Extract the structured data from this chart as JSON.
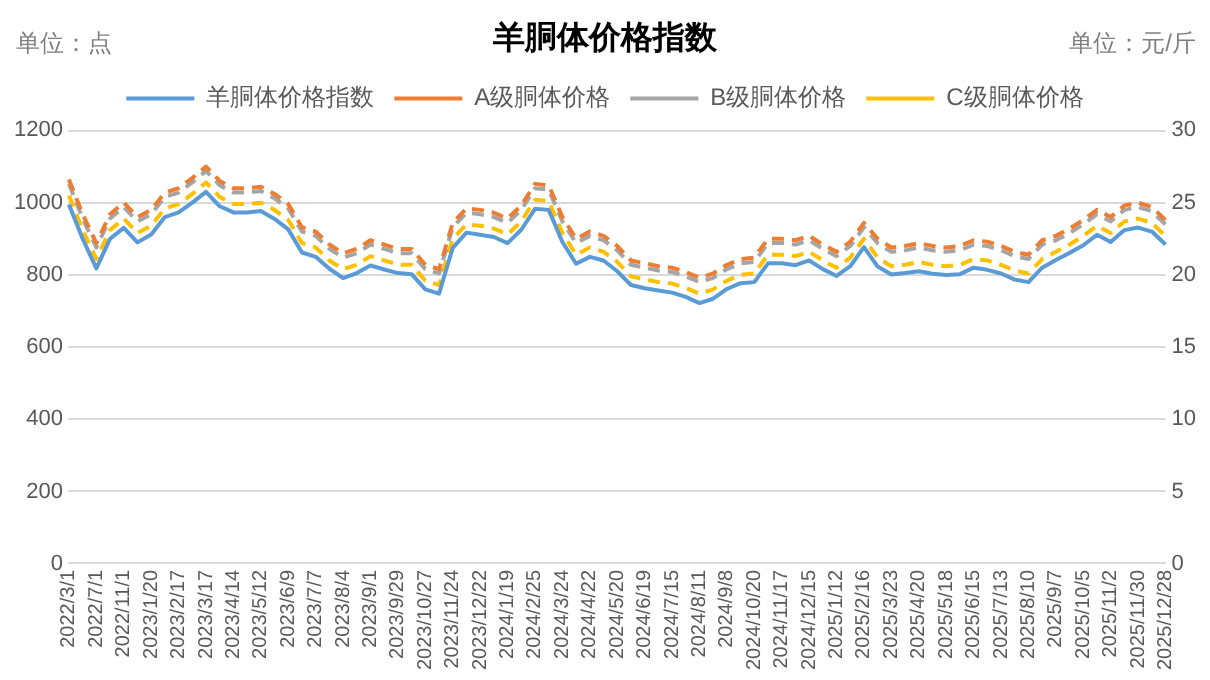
{
  "chart_data": {
    "type": "line",
    "title": "羊胴体价格指数",
    "ylabel": "单位：点",
    "y2label": "单位：元/斤",
    "categories": [
      "2022/3/1",
      null,
      "2022/7/1",
      null,
      "2022/11/1",
      null,
      "2023/1/20",
      null,
      "2023/2/17",
      null,
      "2023/3/17",
      null,
      "2023/4/14",
      null,
      "2023/5/12",
      null,
      "2023/6/9",
      null,
      "2023/7/7",
      null,
      "2023/8/4",
      null,
      "2023/9/1",
      null,
      "2023/9/29",
      null,
      "2023/10/27",
      null,
      "2023/11/24",
      null,
      "2023/12/22",
      null,
      "2024/1/19",
      null,
      "2024/2/25",
      null,
      "2024/3/24",
      null,
      "2024/4/22",
      null,
      "2024/5/20",
      null,
      "2024/6/19",
      null,
      "2024/7/15",
      null,
      "2024/8/11",
      null,
      "2024/9/8",
      null,
      "2024/10/20",
      null,
      "2024/11/17",
      null,
      "2024/12/15",
      null,
      "2025/1/12",
      null,
      "2025/2/16",
      null,
      "2025/3/23",
      null,
      "2025/4/20",
      null,
      "2025/5/18",
      null,
      "2025/6/15",
      null,
      "2025/7/13",
      null,
      "2025/8/10",
      null,
      "2025/9/7",
      null,
      "2025/10/5",
      null,
      "2025/11/2",
      null,
      "2025/11/30",
      null,
      "2025/12/28"
    ],
    "series": [
      {
        "name": "羊胴体价格指数",
        "color": "#5b9bd5",
        "line_style": "solid",
        "values": [
          995,
          900,
          818,
          900,
          930,
          890,
          912,
          960,
          973,
          1000,
          1030,
          990,
          973,
          973,
          977,
          955,
          926,
          862,
          850,
          817,
          791,
          805,
          826,
          815,
          805,
          802,
          760,
          748,
          875,
          917,
          911,
          905,
          888,
          925,
          983,
          980,
          891,
          831,
          850,
          840,
          810,
          772,
          763,
          757,
          751,
          739,
          722,
          734,
          761,
          777,
          780,
          832,
          832,
          827,
          840,
          816,
          797,
          824,
          877,
          823,
          801,
          805,
          810,
          803,
          800,
          802,
          820,
          814,
          804,
          787,
          780,
          820,
          841,
          861,
          882,
          911,
          891,
          924,
          931,
          920,
          884
        ]
      },
      {
        "name": "A级胴体价格",
        "color": "#ed7d31",
        "line_style": "dashed",
        "axis": "y2",
        "values": [
          26.6,
          24.2,
          22.2,
          24.2,
          25.0,
          24.0,
          24.5,
          25.7,
          26.0,
          26.7,
          27.5,
          26.5,
          26.0,
          26.0,
          26.1,
          25.6,
          24.9,
          23.3,
          23.0,
          22.1,
          21.5,
          21.8,
          22.4,
          22.1,
          21.8,
          21.8,
          20.7,
          20.4,
          23.6,
          24.6,
          24.5,
          24.3,
          23.9,
          24.8,
          26.3,
          26.2,
          24.0,
          22.5,
          23.0,
          22.7,
          22.0,
          21.0,
          20.8,
          20.6,
          20.5,
          20.2,
          19.8,
          20.1,
          20.7,
          21.1,
          21.2,
          22.5,
          22.5,
          22.4,
          22.7,
          22.1,
          21.6,
          22.3,
          23.6,
          22.5,
          21.9,
          22.0,
          22.2,
          22.0,
          21.9,
          22.0,
          22.4,
          22.3,
          22.0,
          21.6,
          21.4,
          22.4,
          22.7,
          23.2,
          23.8,
          24.5,
          24.0,
          24.8,
          25.0,
          24.7,
          23.8
        ]
      },
      {
        "name": "B级胴体价格",
        "color": "#a5a5a5",
        "line_style": "dashed",
        "axis": "y2",
        "values": [
          26.3,
          23.9,
          21.9,
          23.9,
          24.7,
          23.7,
          24.2,
          25.4,
          25.7,
          26.4,
          27.2,
          26.2,
          25.7,
          25.7,
          25.8,
          25.3,
          24.6,
          23.0,
          22.7,
          21.8,
          21.2,
          21.5,
          22.1,
          21.8,
          21.5,
          21.5,
          20.4,
          20.1,
          23.3,
          24.3,
          24.2,
          24.0,
          23.6,
          24.5,
          26.0,
          25.9,
          23.7,
          22.2,
          22.7,
          22.4,
          21.7,
          20.7,
          20.5,
          20.3,
          20.2,
          19.9,
          19.5,
          19.8,
          20.4,
          20.8,
          20.9,
          22.2,
          22.2,
          22.1,
          22.4,
          21.8,
          21.3,
          22.0,
          23.3,
          22.2,
          21.6,
          21.7,
          21.9,
          21.7,
          21.6,
          21.7,
          22.1,
          22.0,
          21.7,
          21.3,
          21.1,
          22.1,
          22.4,
          22.9,
          23.5,
          24.2,
          23.7,
          24.5,
          24.7,
          24.4,
          23.5
        ]
      },
      {
        "name": "C级胴体价格",
        "color": "#ffc000",
        "line_style": "dashed",
        "axis": "y2",
        "values": [
          25.5,
          23.1,
          21.1,
          23.1,
          23.9,
          22.9,
          23.4,
          24.6,
          24.9,
          25.6,
          26.4,
          25.4,
          24.9,
          24.9,
          25.0,
          24.5,
          23.8,
          22.2,
          21.9,
          21.0,
          20.4,
          20.7,
          21.3,
          21.0,
          20.7,
          20.7,
          19.6,
          19.3,
          22.5,
          23.5,
          23.4,
          23.2,
          22.8,
          23.7,
          25.2,
          25.1,
          22.9,
          21.4,
          21.9,
          21.6,
          20.9,
          19.9,
          19.7,
          19.5,
          19.4,
          19.1,
          18.7,
          19.0,
          19.6,
          20.0,
          20.1,
          21.4,
          21.4,
          21.3,
          21.6,
          21.0,
          20.5,
          21.2,
          22.5,
          21.2,
          20.6,
          20.7,
          20.9,
          20.7,
          20.6,
          20.7,
          21.1,
          21.0,
          20.7,
          20.3,
          20.1,
          21.1,
          21.6,
          22.1,
          22.7,
          23.4,
          22.9,
          23.7,
          23.9,
          23.6,
          22.7
        ]
      }
    ],
    "ylim": [
      0,
      1200
    ],
    "yticks": [
      0,
      200,
      400,
      600,
      800,
      1000,
      1200
    ],
    "y2lim": [
      0,
      30
    ],
    "y2ticks": [
      0,
      5,
      10,
      15,
      20,
      25,
      30
    ],
    "grid": "y",
    "legend": "top",
    "marker": "none"
  }
}
